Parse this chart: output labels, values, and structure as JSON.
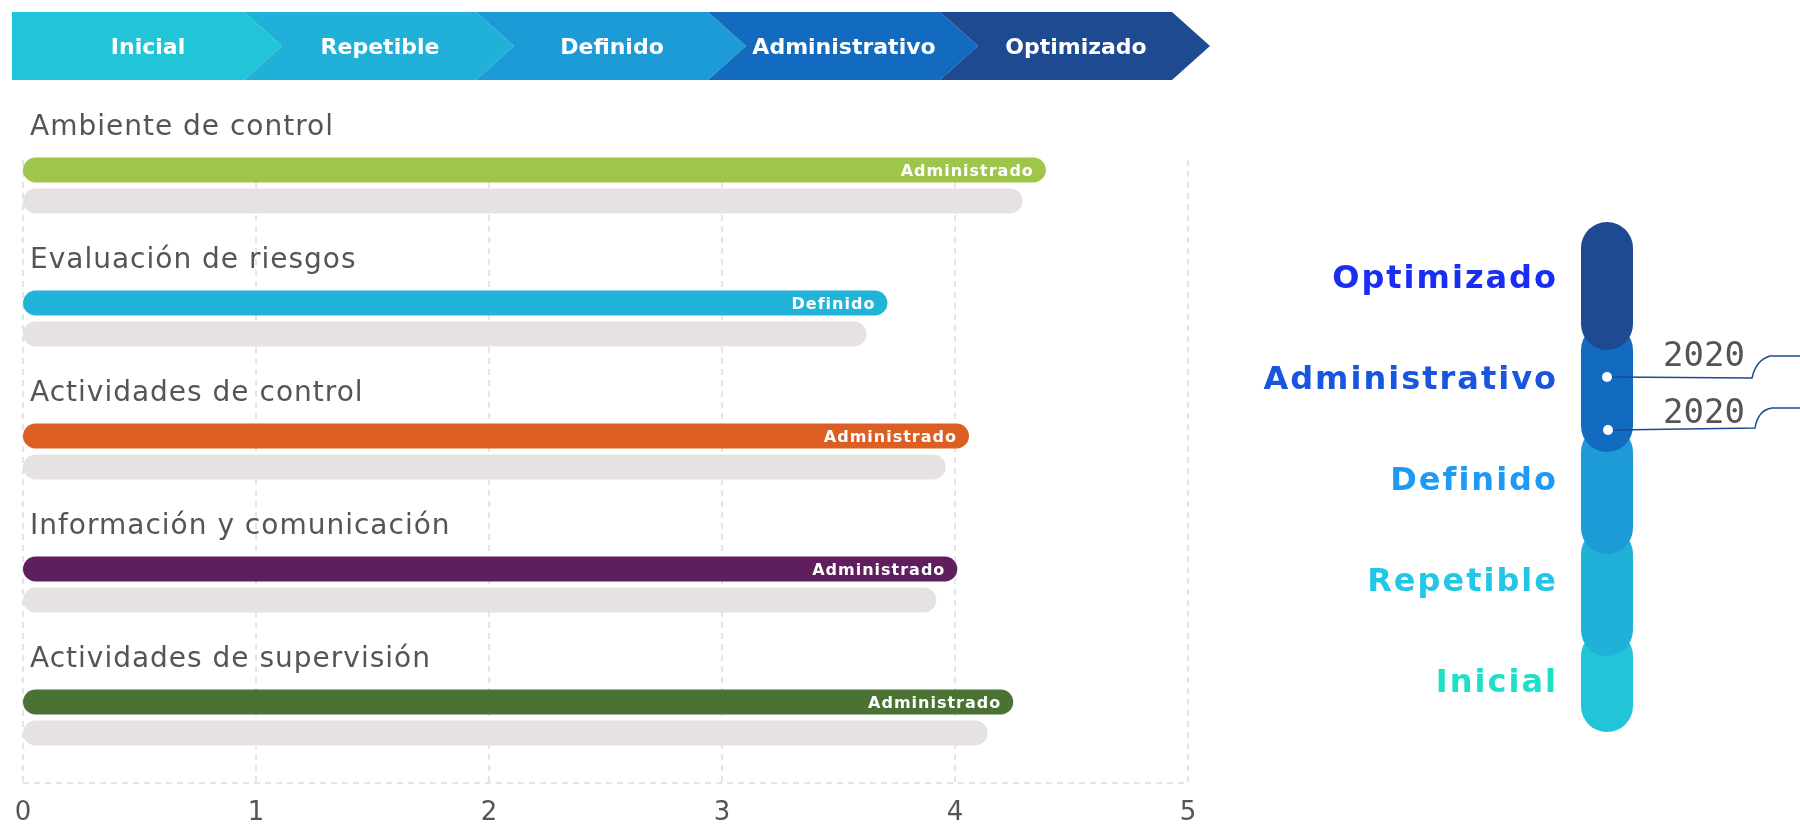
{
  "chart_data": {
    "type": "bar",
    "orientation": "horizontal",
    "categories": [
      "Ambiente de control",
      "Evaluación de riesgos",
      "Actividades de control",
      "Información y comunicación",
      "Actividades de supervisión"
    ],
    "series": [
      {
        "colors": [
          "#9fc54a",
          "#22b4d8",
          "#dd5e22",
          "#5f1f5f",
          "#4a7232"
        ],
        "values": [
          4.39,
          3.71,
          4.06,
          4.01,
          4.25
        ],
        "value_labels": [
          "Administrado",
          "Definido",
          "Administrado",
          "Administrado",
          "Administrado"
        ]
      },
      {
        "color": "#e6e2e2",
        "values": [
          4.29,
          3.62,
          3.96,
          3.92,
          4.14
        ]
      }
    ],
    "xlim": [
      0,
      5
    ],
    "xticks": [
      0,
      1,
      2,
      3,
      4,
      5
    ],
    "grid": "x",
    "annotations": [
      "Inicial",
      "Repetible",
      "Definido",
      "Administrativo",
      "Optimizado",
      "Optimizado",
      "Administrativo",
      "Definido",
      "Repetible",
      "Inicial",
      "2020",
      "2020"
    ]
  }
}
